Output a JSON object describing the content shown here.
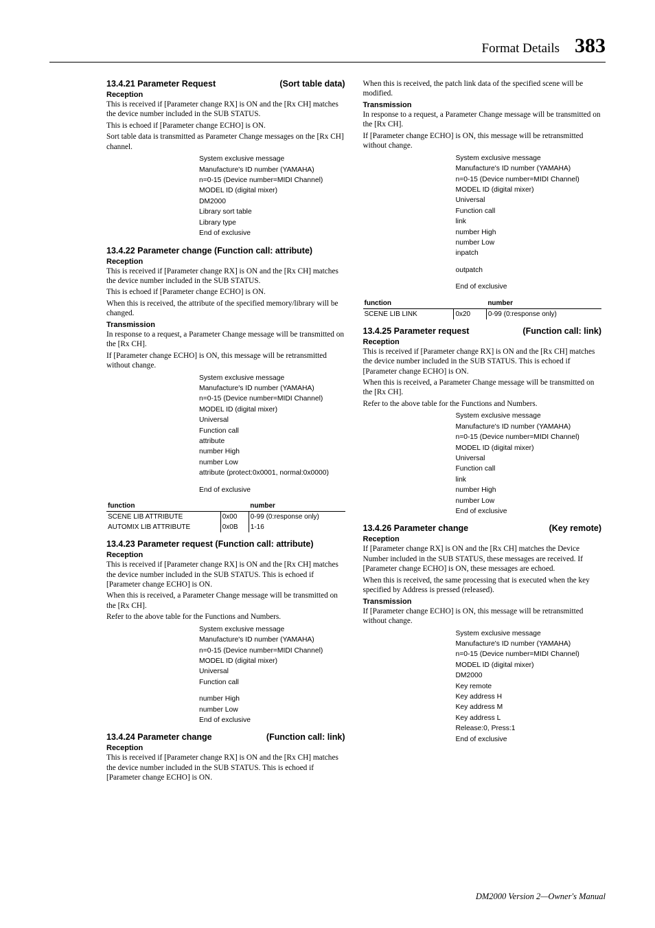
{
  "header": {
    "title": "Format Details",
    "page": "383"
  },
  "footer": "DM2000 Version 2—Owner's Manual",
  "left": {
    "s1": {
      "heading_l": "13.4.21 Parameter Request",
      "heading_r": "(Sort table data)",
      "reception_label": "Reception",
      "p1": "This is received if [Parameter change RX] is ON and the [Rx CH] matches the device number included in the SUB STATUS.",
      "p2": "This is echoed if [Parameter change ECHO] is ON.",
      "p3": "Sort table data is transmitted as Parameter Change messages on the [Rx CH] channel.",
      "list": {
        "i1": "System exclusive message",
        "i2": "Manufacture's ID number (YAMAHA)",
        "i3": "n=0-15 (Device number=MIDI Channel)",
        "i4": "MODEL ID (digital mixer)",
        "i5": "DM2000",
        "i6": "Library sort table",
        "i7": "Library type",
        "i8": "End of exclusive"
      }
    },
    "s2": {
      "heading_l": "13.4.22 Parameter change (Function call: attribute)",
      "reception_label": "Reception",
      "p1": "This is received if [Parameter change RX] is ON and the [Rx CH] matches the device number included in the SUB STATUS.",
      "p2": "This is echoed if [Parameter change ECHO] is ON.",
      "p3": "When this is received, the attribute of the specified memory/library will be changed.",
      "trans_label": "Transmission",
      "p4": "In response to a request, a Parameter Change message will be transmitted on the [Rx CH].",
      "p5": "If [Parameter change ECHO] is ON, this message will be retransmitted without change.",
      "list": {
        "i1": "System exclusive message",
        "i2": "Manufacture's ID number (YAMAHA)",
        "i3": "n=0-15 (Device number=MIDI Channel)",
        "i4": "MODEL ID (digital mixer)",
        "i5": "Universal",
        "i6": "Function call",
        "i7": "attribute",
        "i8": "number High",
        "i9": "number Low",
        "i10": "attribute (protect:0x0001, normal:0x0000)",
        "i11": "End of exclusive"
      },
      "table": {
        "h1": "function",
        "h2": "",
        "h3": "number",
        "r1c1": "SCENE LIB ATTRIBUTE",
        "r1c2": "0x00",
        "r1c3": "0-99 (0:response only)",
        "r2c1": "AUTOMIX LIB ATTRIBUTE",
        "r2c2": "0x0B",
        "r2c3": "1-16"
      }
    },
    "s3": {
      "heading_l": "13.4.23 Parameter request (Function call: attribute)",
      "reception_label": "Reception",
      "p1": "This is received if [Parameter change RX] is ON and the [Rx CH] matches the device number included in the SUB STATUS. This is echoed if [Parameter change ECHO] is ON.",
      "p2": "When this is received, a Parameter Change message will be transmitted on the [Rx CH].",
      "p3": "Refer to the above table for the Functions and Numbers.",
      "list": {
        "i1": "System exclusive message",
        "i2": "Manufacture's ID number (YAMAHA)",
        "i3": "n=0-15 (Device number=MIDI Channel)",
        "i4": "MODEL ID (digital mixer)",
        "i5": "Universal",
        "i6": "Function call",
        "i7": "number High",
        "i8": "number Low",
        "i9": "End of exclusive"
      }
    },
    "s4": {
      "heading_l": "13.4.24 Parameter change",
      "heading_r": "(Function call: link)",
      "reception_label": "Reception",
      "p1": "This is received if [Parameter change RX] is ON and the [Rx CH] matches the device number included in the SUB STATUS. This is echoed if [Parameter change ECHO] is ON."
    }
  },
  "right": {
    "s4c": {
      "p1": "When this is received, the patch link data of the specified scene will be modified.",
      "trans_label": "Transmission",
      "p2": "In response to a request, a Parameter Change message will be transmitted on the [Rx CH].",
      "p3": "If [Parameter change ECHO] is ON, this message will be retransmitted without change.",
      "list": {
        "i1": "System exclusive message",
        "i2": "Manufacture's ID number (YAMAHA)",
        "i3": "n=0-15 (Device number=MIDI Channel)",
        "i4": "MODEL ID (digital mixer)",
        "i5": "Universal",
        "i6": "Function call",
        "i7": "link",
        "i8": "number High",
        "i9": "number Low",
        "i10": "inpatch",
        "i11": "outpatch",
        "i12": "End of exclusive"
      },
      "table": {
        "h1": "function",
        "h2": "",
        "h3": "number",
        "r1c1": "SCENE LIB LINK",
        "r1c2": "0x20",
        "r1c3": "0-99 (0:response only)"
      }
    },
    "s5": {
      "heading_l": "13.4.25 Parameter request",
      "heading_r": "(Function call: link)",
      "reception_label": "Reception",
      "p1": "This is received if [Parameter change RX] is ON and the [Rx CH] matches the device number included in the SUB STATUS. This is echoed if [Parameter change ECHO] is ON.",
      "p2": "When this is received, a Parameter Change message will be transmitted on the [Rx CH].",
      "p3": "Refer to the above table for the Functions and Numbers.",
      "list": {
        "i1": "System exclusive message",
        "i2": "Manufacture's ID number (YAMAHA)",
        "i3": "n=0-15 (Device number=MIDI Channel)",
        "i4": "MODEL ID (digital mixer)",
        "i5": "Universal",
        "i6": "Function call",
        "i7": "link",
        "i8": "number High",
        "i9": "number Low",
        "i10": "End of exclusive"
      }
    },
    "s6": {
      "heading_l": "13.4.26 Parameter change",
      "heading_r": "(Key remote)",
      "reception_label": "Reception",
      "p1": "If [Parameter change RX] is ON and the [Rx CH] matches the Device Number included in the SUB STATUS, these messages are received. If [Parameter change ECHO] is ON, these messages are echoed.",
      "p2": "When this is received, the same processing that is executed when the key specified by Address is pressed (released).",
      "trans_label": "Transmission",
      "p3": "If [Parameter change ECHO] is ON, this message will be retransmitted without change.",
      "list": {
        "i1": "System exclusive message",
        "i2": "Manufacture's ID number (YAMAHA)",
        "i3": "n=0-15 (Device number=MIDI Channel)",
        "i4": "MODEL ID (digital mixer)",
        "i5": "DM2000",
        "i6": "Key remote",
        "i7": "Key address H",
        "i8": "Key address M",
        "i9": "Key address L",
        "i10": "Release:0, Press:1",
        "i11": "End of exclusive"
      }
    }
  }
}
